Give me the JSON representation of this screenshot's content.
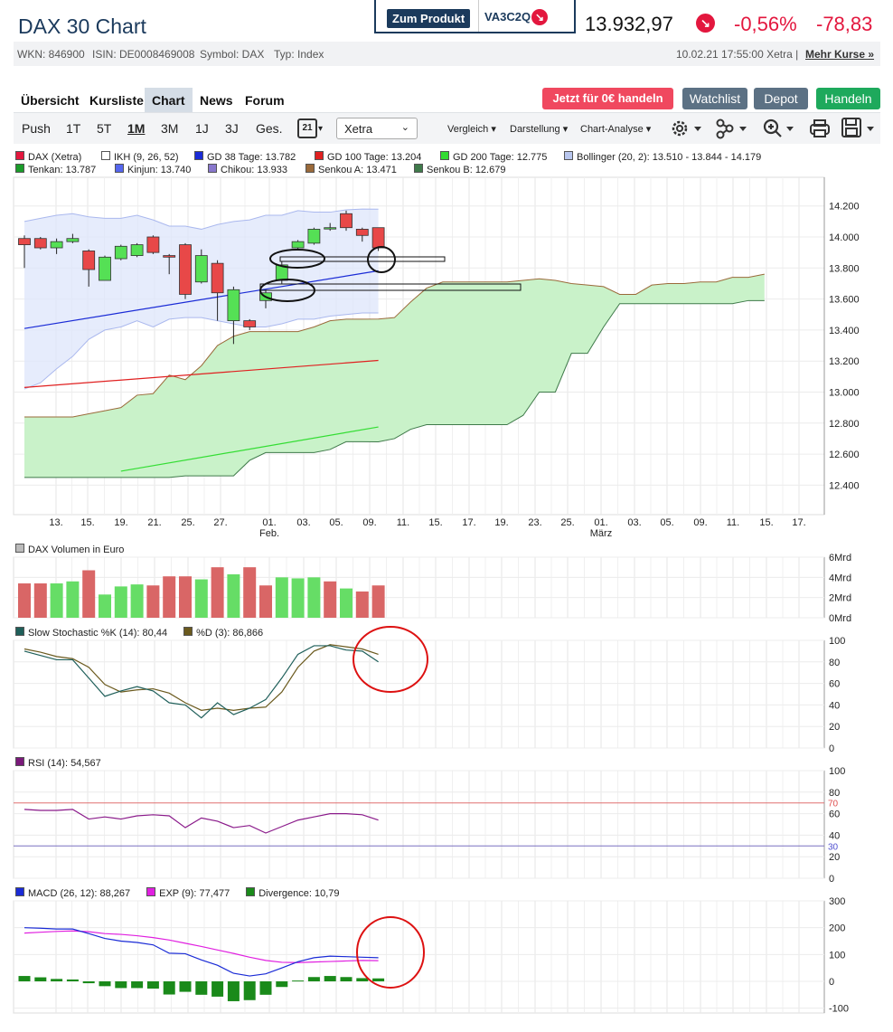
{
  "header": {
    "title": "DAX 30 Chart",
    "zum_produkt": "Zum Produkt",
    "product_code": "VA3C2Q",
    "price": "13.932,97",
    "change_pct": "-0,56%",
    "change_abs": "-78,83"
  },
  "info": {
    "wkn": "WKN: 846900",
    "isin": "ISIN: DE0008469008",
    "symbol": "Symbol: DAX",
    "typ": "Typ: Index",
    "timestamp": "10.02.21 17:55:00 Xetra |",
    "mehr_kurse": "Mehr Kurse »"
  },
  "tabs": [
    "Übersicht",
    "Kursliste",
    "Chart",
    "News",
    "Forum"
  ],
  "active_tab": "Chart",
  "action_buttons": {
    "trade": "Jetzt für 0€ handeln",
    "watchlist": "Watchlist",
    "depot": "Depot",
    "handeln": "Handeln"
  },
  "colors": {
    "red": "#e3173e",
    "navy": "#1b3a5c",
    "gray_btn": "#5c7184",
    "green_btn": "#1ea95c"
  },
  "toolbar": {
    "ranges": [
      "Push",
      "1T",
      "5T",
      "1M",
      "3M",
      "1J",
      "3J",
      "Ges."
    ],
    "active_range": "1M",
    "calendar_day": "21",
    "exchange": "Xetra",
    "vergleich": "Vergleich",
    "darstellung": "Darstellung",
    "analyse": "Chart-Analyse",
    "icons": [
      "gear-icon",
      "network-icon",
      "zoom-icon",
      "print-icon",
      "save-icon"
    ]
  },
  "legend_main": [
    {
      "label": "DAX (Xetra)",
      "color": "#e3173e"
    },
    {
      "label": "IKH (9, 26, 52)",
      "color": "#ffffff"
    },
    {
      "label": "GD 38 Tage: 13.782",
      "color": "#1a2bd6"
    },
    {
      "label": "GD 100 Tage: 13.204",
      "color": "#e02020"
    },
    {
      "label": "GD 200 Tage: 12.775",
      "color": "#33dd33"
    },
    {
      "label": "Bollinger (20, 2): 13.510 - 13.844 - 14.179",
      "color": "#b8c6ee"
    },
    {
      "label": "Tenkan: 13.787",
      "color": "#1a9c2a"
    },
    {
      "label": "Kinjun: 13.740",
      "color": "#5566ee"
    },
    {
      "label": "Chikou: 13.933",
      "color": "#8877cc"
    },
    {
      "label": "Senkou A: 13.471",
      "color": "#9a6a3a"
    },
    {
      "label": "Senkou B: 12.679",
      "color": "#3f7a4a"
    }
  ],
  "x_axis": {
    "labels": [
      "13.",
      "15.",
      "19.",
      "21.",
      "25.",
      "27.",
      "01.",
      "03.",
      "05.",
      "09.",
      "11.",
      "15.",
      "17.",
      "19.",
      "23.",
      "25.",
      "01.",
      "03.",
      "05.",
      "09.",
      "11.",
      "15.",
      "17."
    ],
    "month_feb": "Feb.",
    "month_mar": "März"
  },
  "y_axis_main": [
    "14.200",
    "14.000",
    "13.800",
    "13.600",
    "13.400",
    "13.200",
    "13.000",
    "12.800",
    "12.600",
    "12.400"
  ],
  "volume": {
    "header": "DAX Volumen in Euro",
    "y_labels": [
      "6Mrd",
      "4Mrd",
      "2Mrd",
      "0Mrd"
    ]
  },
  "stochastic": {
    "header_k": "Slow Stochastic %K (14): 80,44",
    "header_d": "%D (3): 86,866",
    "y_labels": [
      "100",
      "80",
      "60",
      "40",
      "20",
      "0"
    ]
  },
  "rsi": {
    "header": "RSI (14): 54,567",
    "y_labels": [
      "100",
      "80",
      "60",
      "40",
      "20",
      "0"
    ],
    "level_high": "70",
    "level_low": "30"
  },
  "macd": {
    "header_macd": "MACD (26, 12): 88,267",
    "header_exp": "EXP (9): 77,477",
    "header_div": "Divergence: 10,79",
    "y_labels": [
      "300",
      "200",
      "100",
      "0",
      "-100"
    ]
  },
  "chart_data": {
    "type": "candlestick",
    "candles": [
      {
        "o": 13990,
        "c": 13950,
        "h": 14010,
        "l": 13800
      },
      {
        "o": 13990,
        "c": 13930,
        "h": 14000,
        "l": 13920
      },
      {
        "o": 13930,
        "c": 13970,
        "h": 13990,
        "l": 13890
      },
      {
        "o": 13970,
        "c": 13990,
        "h": 14020,
        "l": 13960
      },
      {
        "o": 13910,
        "c": 13790,
        "h": 13920,
        "l": 13680
      },
      {
        "o": 13720,
        "c": 13870,
        "h": 13880,
        "l": 13720
      },
      {
        "o": 13860,
        "c": 13940,
        "h": 13950,
        "l": 13850
      },
      {
        "o": 13880,
        "c": 13950,
        "h": 13960,
        "l": 13870
      },
      {
        "o": 14000,
        "c": 13900,
        "h": 14010,
        "l": 13890
      },
      {
        "o": 13880,
        "c": 13870,
        "h": 13890,
        "l": 13760
      },
      {
        "o": 13950,
        "c": 13630,
        "h": 13960,
        "l": 13600
      },
      {
        "o": 13710,
        "c": 13880,
        "h": 13920,
        "l": 13700
      },
      {
        "o": 13830,
        "c": 13640,
        "h": 13850,
        "l": 13460
      },
      {
        "o": 13460,
        "c": 13660,
        "h": 13680,
        "l": 13310
      },
      {
        "o": 13460,
        "c": 13420,
        "h": 13470,
        "l": 13400
      },
      {
        "o": 13590,
        "c": 13640,
        "h": 13660,
        "l": 13540
      },
      {
        "o": 13720,
        "c": 13820,
        "h": 13840,
        "l": 13700
      },
      {
        "o": 13930,
        "c": 13970,
        "h": 13980,
        "l": 13920
      },
      {
        "o": 13960,
        "c": 14050,
        "h": 14060,
        "l": 13950
      },
      {
        "o": 14060,
        "c": 14060,
        "h": 14090,
        "l": 14040
      },
      {
        "o": 14150,
        "c": 14060,
        "h": 14170,
        "l": 14040
      },
      {
        "o": 14050,
        "c": 14010,
        "h": 14060,
        "l": 13970
      },
      {
        "o": 14060,
        "c": 13930,
        "h": 14060,
        "l": 13910
      }
    ],
    "volume_mrd": [
      3.4,
      3.4,
      3.4,
      3.6,
      4.7,
      2.3,
      3.1,
      3.3,
      3.2,
      4.1,
      4.1,
      3.8,
      5.0,
      4.3,
      5.0,
      3.2,
      4.0,
      3.9,
      4.0,
      3.6,
      2.9,
      2.6,
      3.2
    ],
    "volume_up": [
      false,
      false,
      true,
      true,
      false,
      true,
      true,
      true,
      false,
      false,
      false,
      true,
      false,
      true,
      false,
      false,
      true,
      true,
      true,
      false,
      true,
      false,
      false
    ],
    "stoch_k": [
      90,
      86,
      82,
      82,
      65,
      48,
      53,
      57,
      53,
      42,
      40,
      28,
      42,
      31,
      37,
      45,
      65,
      87,
      95,
      95,
      91,
      90,
      80
    ],
    "stoch_d": [
      92,
      89,
      85,
      83,
      75,
      59,
      52,
      54,
      55,
      51,
      42,
      35,
      37,
      35,
      37,
      38,
      52,
      75,
      90,
      96,
      94,
      92,
      87
    ],
    "rsi": [
      64,
      63,
      63,
      64,
      55,
      57,
      55,
      58,
      59,
      58,
      47,
      56,
      53,
      47,
      49,
      42,
      48,
      54,
      57,
      60,
      60,
      59,
      54
    ],
    "macd": [
      200,
      198,
      195,
      195,
      178,
      160,
      150,
      145,
      136,
      105,
      103,
      80,
      60,
      30,
      20,
      28,
      50,
      73,
      88,
      94,
      92,
      90,
      88
    ],
    "macd_exp": [
      180,
      183,
      186,
      188,
      185,
      178,
      175,
      170,
      163,
      154,
      142,
      130,
      117,
      104,
      90,
      78,
      71,
      70,
      72,
      74,
      76,
      78,
      77
    ],
    "macd_div": [
      20,
      15,
      9,
      7,
      -7,
      -18,
      -25,
      -25,
      -27,
      -49,
      -39,
      -50,
      -57,
      -74,
      -70,
      -50,
      -21,
      3,
      16,
      20,
      16,
      12,
      11
    ],
    "gd38": [
      [
        0,
        13410
      ],
      [
        22,
        13782
      ]
    ],
    "gd100": [
      [
        0,
        13030
      ],
      [
        22,
        13204
      ]
    ],
    "gd200": [
      [
        6,
        12490
      ],
      [
        22,
        12775
      ]
    ],
    "boll_upper": [
      14100,
      14120,
      14140,
      14150,
      14130,
      14120,
      14120,
      14140,
      14110,
      14070,
      14070,
      14050,
      14080,
      14100,
      14110,
      14140,
      14140,
      14170,
      14160,
      14160,
      14175,
      14180,
      14179
    ],
    "boll_lower": [
      13020,
      13060,
      13150,
      13230,
      13340,
      13400,
      13420,
      13460,
      13420,
      13470,
      13480,
      13480,
      13460,
      13440,
      13420,
      13420,
      13440,
      13470,
      13470,
      13490,
      13500,
      13510,
      13510
    ],
    "senkou_a": [
      12840,
      12840,
      12840,
      12840,
      12860,
      12880,
      12900,
      12980,
      12990,
      13110,
      13080,
      13170,
      13300,
      13360,
      13390,
      13390,
      13390,
      13390,
      13420,
      13460,
      13470,
      13470,
      13471,
      13480,
      13580,
      13670,
      13710,
      13710,
      13710,
      13710,
      13710,
      13720,
      13730,
      13720,
      13700,
      13690,
      13680,
      13630,
      13630,
      13690,
      13700,
      13700,
      13710,
      13710,
      13740,
      13740,
      13760
    ],
    "senkou_b": [
      12450,
      12450,
      12450,
      12450,
      12450,
      12450,
      12450,
      12450,
      12450,
      12450,
      12460,
      12460,
      12460,
      12460,
      12560,
      12610,
      12610,
      12610,
      12610,
      12630,
      12680,
      12680,
      12679,
      12700,
      12760,
      12790,
      12790,
      12790,
      12790,
      12790,
      12790,
      12850,
      13000,
      13000,
      13250,
      13250,
      13420,
      13570,
      13570,
      13570,
      13570,
      13570,
      13570,
      13570,
      13570,
      13590,
      13590
    ]
  }
}
